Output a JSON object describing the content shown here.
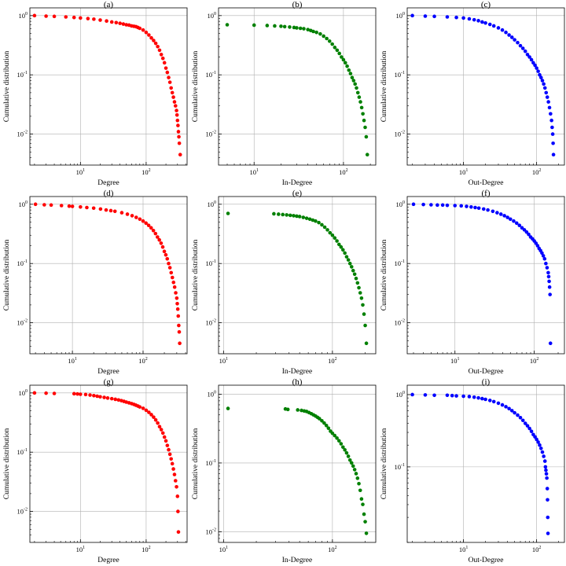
{
  "chart_data": [
    {
      "panel": "(a)",
      "type": "scatter",
      "title": "(a)",
      "xlabel": "Degree",
      "ylabel": "Cumulative distribution",
      "xscale": "log",
      "yscale": "log",
      "color": "#ff0000",
      "xlim": [
        1.7,
        420
      ],
      "ylim": [
        0.003,
        1.35
      ],
      "xticks": [
        10,
        100
      ],
      "yticks": [
        0.01,
        0.1,
        1
      ],
      "grid": true,
      "x": [
        2,
        3,
        4,
        6,
        8,
        10,
        13,
        16,
        20,
        25,
        30,
        35,
        40,
        45,
        50,
        55,
        60,
        65,
        70,
        75,
        80,
        90,
        100,
        110,
        120,
        130,
        140,
        150,
        160,
        170,
        180,
        190,
        200,
        210,
        220,
        230,
        240,
        250,
        260,
        270,
        280,
        290,
        295,
        300,
        305,
        310,
        315,
        320,
        330
      ],
      "y": [
        1.0,
        0.98,
        0.97,
        0.95,
        0.93,
        0.91,
        0.89,
        0.87,
        0.84,
        0.81,
        0.78,
        0.76,
        0.74,
        0.72,
        0.7,
        0.69,
        0.67,
        0.66,
        0.65,
        0.63,
        0.61,
        0.57,
        0.52,
        0.47,
        0.42,
        0.38,
        0.34,
        0.3,
        0.26,
        0.22,
        0.19,
        0.16,
        0.13,
        0.11,
        0.09,
        0.075,
        0.06,
        0.05,
        0.042,
        0.035,
        0.03,
        0.025,
        0.021,
        0.017,
        0.014,
        0.011,
        0.009,
        0.007,
        0.0045
      ]
    },
    {
      "panel": "(b)",
      "type": "scatter",
      "title": "(b)",
      "xlabel": "In-Degree",
      "ylabel": "Cumulative distribution",
      "xscale": "log",
      "yscale": "log",
      "color": "#008000",
      "xlim": [
        4,
        230
      ],
      "ylim": [
        0.003,
        1.35
      ],
      "xticks": [
        10,
        100
      ],
      "yticks": [
        0.01,
        0.1,
        1
      ],
      "grid": true,
      "x": [
        5,
        10,
        14,
        17,
        20,
        22,
        25,
        28,
        30,
        33,
        36,
        40,
        43,
        46,
        50,
        55,
        60,
        65,
        70,
        75,
        80,
        85,
        90,
        95,
        100,
        105,
        110,
        115,
        120,
        125,
        130,
        135,
        140,
        145,
        150,
        155,
        160,
        165,
        170,
        175,
        180,
        185
      ],
      "y": [
        0.7,
        0.69,
        0.68,
        0.67,
        0.66,
        0.65,
        0.64,
        0.63,
        0.62,
        0.61,
        0.6,
        0.58,
        0.56,
        0.54,
        0.52,
        0.49,
        0.45,
        0.41,
        0.37,
        0.33,
        0.29,
        0.26,
        0.23,
        0.2,
        0.18,
        0.16,
        0.14,
        0.12,
        0.105,
        0.09,
        0.08,
        0.07,
        0.06,
        0.05,
        0.042,
        0.035,
        0.028,
        0.022,
        0.017,
        0.013,
        0.009,
        0.0045
      ]
    },
    {
      "panel": "(c)",
      "type": "scatter",
      "title": "(c)",
      "xlabel": "Out-Degree",
      "ylabel": "Cumulative distribution",
      "xscale": "log",
      "yscale": "log",
      "color": "#0000ff",
      "xlim": [
        1.7,
        240
      ],
      "ylim": [
        0.003,
        1.35
      ],
      "xticks": [
        10,
        100
      ],
      "yticks": [
        0.01,
        0.1,
        1
      ],
      "grid": true,
      "x": [
        2,
        3,
        4,
        6,
        8,
        10,
        12,
        14,
        16,
        18,
        20,
        23,
        26,
        30,
        34,
        38,
        42,
        46,
        50,
        55,
        60,
        65,
        70,
        75,
        80,
        85,
        90,
        95,
        100,
        105,
        110,
        115,
        120,
        125,
        130,
        135,
        140,
        145,
        150,
        155,
        160,
        163,
        166,
        168,
        170
      ],
      "y": [
        1.0,
        0.98,
        0.97,
        0.95,
        0.93,
        0.91,
        0.88,
        0.85,
        0.82,
        0.78,
        0.75,
        0.71,
        0.67,
        0.62,
        0.57,
        0.52,
        0.47,
        0.43,
        0.39,
        0.35,
        0.31,
        0.28,
        0.25,
        0.22,
        0.2,
        0.18,
        0.16,
        0.145,
        0.13,
        0.115,
        0.1,
        0.09,
        0.08,
        0.07,
        0.06,
        0.05,
        0.042,
        0.035,
        0.028,
        0.022,
        0.017,
        0.013,
        0.01,
        0.007,
        0.0045
      ]
    },
    {
      "panel": "(d)",
      "type": "scatter",
      "title": "(d)",
      "xlabel": "Degree",
      "ylabel": "Cumulative distribution",
      "xscale": "log",
      "yscale": "log",
      "color": "#ff0000",
      "xlim": [
        2.5,
        420
      ],
      "ylim": [
        0.003,
        1.35
      ],
      "xticks": [
        10,
        100
      ],
      "yticks": [
        0.01,
        0.1,
        1
      ],
      "grid": true,
      "x": [
        3,
        4,
        5,
        7,
        9,
        10,
        13,
        16,
        20,
        25,
        30,
        35,
        40,
        50,
        60,
        70,
        80,
        90,
        100,
        110,
        120,
        130,
        140,
        150,
        160,
        170,
        180,
        190,
        200,
        210,
        220,
        230,
        240,
        250,
        260,
        270,
        280,
        290,
        300,
        305,
        310,
        315,
        320,
        325,
        330
      ],
      "y": [
        1.0,
        0.98,
        0.97,
        0.95,
        0.93,
        0.92,
        0.9,
        0.88,
        0.86,
        0.83,
        0.8,
        0.78,
        0.76,
        0.72,
        0.68,
        0.64,
        0.6,
        0.56,
        0.52,
        0.48,
        0.44,
        0.4,
        0.36,
        0.32,
        0.28,
        0.25,
        0.22,
        0.19,
        0.16,
        0.14,
        0.12,
        0.1,
        0.085,
        0.07,
        0.058,
        0.048,
        0.04,
        0.032,
        0.026,
        0.021,
        0.017,
        0.013,
        0.009,
        0.007,
        0.0045
      ]
    },
    {
      "panel": "(e)",
      "type": "scatter",
      "title": "(e)",
      "xlabel": "In-Degree",
      "ylabel": "Cumulative distribution",
      "xscale": "log",
      "yscale": "log",
      "color": "#008000",
      "xlim": [
        9,
        250
      ],
      "ylim": [
        0.003,
        1.35
      ],
      "xticks": [
        10,
        100
      ],
      "yticks": [
        0.01,
        0.1,
        1
      ],
      "grid": true,
      "x": [
        11,
        29,
        32,
        35,
        38,
        41,
        44,
        47,
        50,
        54,
        58,
        62,
        66,
        70,
        75,
        80,
        85,
        90,
        95,
        100,
        105,
        110,
        115,
        120,
        125,
        130,
        135,
        140,
        145,
        150,
        155,
        160,
        165,
        170,
        175,
        180,
        185,
        190,
        195,
        200,
        205
      ],
      "y": [
        0.7,
        0.69,
        0.68,
        0.67,
        0.66,
        0.65,
        0.64,
        0.63,
        0.62,
        0.6,
        0.58,
        0.56,
        0.54,
        0.52,
        0.49,
        0.45,
        0.41,
        0.37,
        0.33,
        0.3,
        0.27,
        0.24,
        0.21,
        0.19,
        0.17,
        0.15,
        0.13,
        0.115,
        0.1,
        0.088,
        0.076,
        0.066,
        0.056,
        0.047,
        0.039,
        0.032,
        0.026,
        0.02,
        0.014,
        0.009,
        0.0045
      ]
    },
    {
      "panel": "(f)",
      "type": "scatter",
      "title": "(f)",
      "xlabel": "Out-Degree",
      "ylabel": "Cumulative distribution",
      "xscale": "log",
      "yscale": "log",
      "color": "#0000ff",
      "xlim": [
        2.5,
        240
      ],
      "ylim": [
        0.003,
        1.35
      ],
      "xticks": [
        10,
        100
      ],
      "yticks": [
        0.01,
        0.1,
        1
      ],
      "grid": true,
      "x": [
        3,
        4,
        5,
        6,
        7,
        8,
        10,
        12,
        14,
        16,
        18,
        20,
        23,
        26,
        30,
        34,
        38,
        42,
        46,
        50,
        55,
        60,
        65,
        70,
        75,
        80,
        85,
        90,
        95,
        100,
        105,
        110,
        115,
        120,
        125,
        130,
        135,
        140,
        145,
        150,
        152,
        154,
        156,
        158,
        160
      ],
      "y": [
        1.0,
        0.99,
        0.98,
        0.97,
        0.97,
        0.96,
        0.95,
        0.94,
        0.92,
        0.9,
        0.88,
        0.86,
        0.83,
        0.8,
        0.76,
        0.72,
        0.68,
        0.64,
        0.6,
        0.56,
        0.52,
        0.48,
        0.44,
        0.4,
        0.37,
        0.34,
        0.31,
        0.28,
        0.26,
        0.24,
        0.22,
        0.2,
        0.18,
        0.165,
        0.15,
        0.135,
        0.12,
        0.1,
        0.085,
        0.07,
        0.06,
        0.05,
        0.04,
        0.03,
        0.0045
      ]
    },
    {
      "panel": "(g)",
      "type": "scatter",
      "title": "(g)",
      "xlabel": "Degree",
      "ylabel": "Cumulative distribution",
      "xscale": "log",
      "yscale": "log",
      "color": "#ff0000",
      "xlim": [
        1.7,
        420
      ],
      "ylim": [
        0.003,
        1.35
      ],
      "xticks": [
        10,
        100
      ],
      "yticks": [
        0.01,
        0.1,
        1
      ],
      "grid": true,
      "x": [
        2,
        3,
        4,
        8,
        9,
        10,
        12,
        14,
        16,
        18,
        20,
        23,
        26,
        30,
        34,
        38,
        42,
        46,
        50,
        55,
        60,
        65,
        70,
        75,
        80,
        90,
        100,
        110,
        120,
        130,
        140,
        150,
        160,
        170,
        180,
        190,
        200,
        210,
        220,
        230,
        240,
        250,
        260,
        270,
        280,
        290,
        300,
        305,
        310
      ],
      "y": [
        1.0,
        0.99,
        0.98,
        0.97,
        0.96,
        0.95,
        0.94,
        0.92,
        0.9,
        0.88,
        0.86,
        0.84,
        0.82,
        0.8,
        0.78,
        0.76,
        0.74,
        0.72,
        0.7,
        0.68,
        0.66,
        0.64,
        0.62,
        0.6,
        0.58,
        0.55,
        0.51,
        0.47,
        0.43,
        0.39,
        0.35,
        0.31,
        0.27,
        0.24,
        0.21,
        0.18,
        0.155,
        0.13,
        0.11,
        0.092,
        0.077,
        0.064,
        0.052,
        0.042,
        0.033,
        0.026,
        0.018,
        0.01,
        0.0045
      ]
    },
    {
      "panel": "(h)",
      "type": "scatter",
      "title": "(h)",
      "xlabel": "In-Degree",
      "ylabel": "Cumulative distribution",
      "xscale": "log",
      "yscale": "log",
      "color": "#008000",
      "xlim": [
        9,
        250
      ],
      "ylim": [
        0.007,
        1.35
      ],
      "xticks": [
        10,
        100
      ],
      "yticks": [
        0.01,
        0.1,
        1
      ],
      "grid": true,
      "x": [
        11,
        37,
        39,
        48,
        52,
        55,
        58,
        61,
        64,
        67,
        70,
        73,
        76,
        80,
        84,
        88,
        92,
        96,
        100,
        105,
        110,
        115,
        120,
        125,
        130,
        135,
        140,
        145,
        150,
        155,
        160,
        165,
        170,
        175,
        180,
        185,
        190,
        195,
        200,
        205
      ],
      "y": [
        0.62,
        0.61,
        0.6,
        0.59,
        0.58,
        0.57,
        0.56,
        0.54,
        0.52,
        0.5,
        0.48,
        0.46,
        0.44,
        0.41,
        0.38,
        0.35,
        0.32,
        0.29,
        0.27,
        0.25,
        0.23,
        0.21,
        0.19,
        0.17,
        0.155,
        0.14,
        0.125,
        0.11,
        0.1,
        0.09,
        0.08,
        0.07,
        0.06,
        0.05,
        0.04,
        0.03,
        0.025,
        0.018,
        0.014,
        0.0095
      ]
    },
    {
      "panel": "(i)",
      "type": "scatter",
      "title": "(i)",
      "xlabel": "Out-Degree",
      "ylabel": "Cumulative distribution",
      "xscale": "log",
      "yscale": "log",
      "color": "#0000ff",
      "xlim": [
        1.7,
        240
      ],
      "ylim": [
        0.009,
        1.35
      ],
      "xticks": [
        10,
        100
      ],
      "yticks": [
        0.1,
        1
      ],
      "grid": true,
      "x": [
        2,
        3,
        4,
        6,
        7,
        8,
        10,
        12,
        14,
        16,
        18,
        20,
        23,
        26,
        30,
        34,
        38,
        42,
        46,
        50,
        55,
        60,
        65,
        70,
        75,
        80,
        85,
        90,
        95,
        100,
        105,
        110,
        115,
        120,
        125,
        130,
        132,
        134,
        136,
        138,
        140,
        141,
        142,
        143
      ],
      "y": [
        1.0,
        0.99,
        0.98,
        0.98,
        0.97,
        0.96,
        0.95,
        0.94,
        0.92,
        0.9,
        0.88,
        0.86,
        0.83,
        0.8,
        0.76,
        0.72,
        0.68,
        0.64,
        0.6,
        0.56,
        0.52,
        0.48,
        0.44,
        0.4,
        0.37,
        0.34,
        0.31,
        0.28,
        0.26,
        0.24,
        0.22,
        0.2,
        0.18,
        0.16,
        0.14,
        0.12,
        0.1,
        0.09,
        0.08,
        0.07,
        0.05,
        0.035,
        0.02,
        0.012
      ]
    }
  ]
}
